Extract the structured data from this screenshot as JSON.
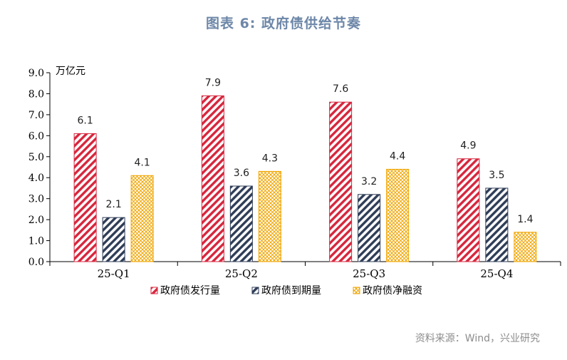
{
  "figure_title": "图表 6:   政府债供给节奏",
  "source": "资料来源：Wind，兴业研究",
  "chart_data": {
    "type": "bar",
    "categories": [
      "25-Q1",
      "25-Q2",
      "25-Q3",
      "25-Q4"
    ],
    "unit_label": "万亿元",
    "ylim": [
      0,
      9
    ],
    "yticks": [
      "0.0",
      "1.0",
      "2.0",
      "3.0",
      "4.0",
      "5.0",
      "6.0",
      "7.0",
      "8.0",
      "9.0"
    ],
    "series": [
      {
        "name": "政府债发行量",
        "values": [
          6.1,
          7.9,
          7.6,
          4.9
        ],
        "labels": [
          "6.1",
          "7.9",
          "7.6",
          "4.9"
        ],
        "color": "#d7263d",
        "pattern": "diagonal"
      },
      {
        "name": "政府债到期量",
        "values": [
          2.1,
          3.6,
          3.2,
          3.5
        ],
        "labels": [
          "2.1",
          "3.6",
          "3.2",
          "3.5"
        ],
        "color": "#2f3d57",
        "pattern": "diagonal"
      },
      {
        "name": "政府债净融资",
        "values": [
          4.1,
          4.3,
          4.4,
          1.4
        ],
        "labels": [
          "4.1",
          "4.3",
          "4.4",
          "1.4"
        ],
        "color": "#f0a500",
        "pattern": "crosshatch"
      }
    ],
    "legend_position": "bottom",
    "grid": false
  }
}
